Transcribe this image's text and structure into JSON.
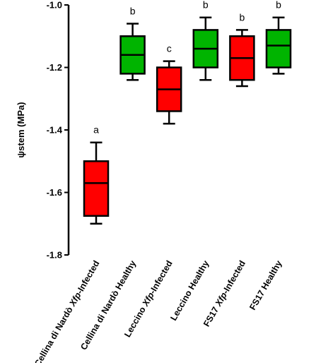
{
  "chart_data": {
    "type": "box",
    "ylabel": "ψstem (MPa)",
    "ylim": [
      -1.8,
      -1.0
    ],
    "yticks": [
      -1.0,
      -1.2,
      -1.4,
      -1.6,
      -1.8
    ],
    "ytick_labels": [
      "-1.0",
      "-1.2",
      "-1.4",
      "-1.6",
      "-1.8"
    ],
    "grid": false,
    "categories": [
      {
        "pre": "Cellina di Nardò ",
        "italic": "Xfp",
        "post": "-Infected"
      },
      {
        "pre": "Cellina di Nardò Healthy",
        "italic": "",
        "post": ""
      },
      {
        "pre": "Leccino ",
        "italic": "Xfp",
        "post": "-Infected"
      },
      {
        "pre": "Leccino Healthy",
        "italic": "",
        "post": ""
      },
      {
        "pre": "FS17 ",
        "italic": "Xfp",
        "post": "-Infected"
      },
      {
        "pre": "FS17 Healthy",
        "italic": "",
        "post": ""
      }
    ],
    "boxes": [
      {
        "min": -1.7,
        "q1": -1.675,
        "median": -1.57,
        "q3": -1.5,
        "max": -1.44,
        "color": "#ff0000",
        "letter": "a"
      },
      {
        "min": -1.24,
        "q1": -1.22,
        "median": -1.16,
        "q3": -1.1,
        "max": -1.06,
        "color": "#00b400",
        "letter": "b"
      },
      {
        "min": -1.38,
        "q1": -1.34,
        "median": -1.27,
        "q3": -1.2,
        "max": -1.18,
        "color": "#ff0000",
        "letter": "c"
      },
      {
        "min": -1.24,
        "q1": -1.2,
        "median": -1.14,
        "q3": -1.08,
        "max": -1.04,
        "color": "#00b400",
        "letter": "b"
      },
      {
        "min": -1.26,
        "q1": -1.24,
        "median": -1.17,
        "q3": -1.1,
        "max": -1.08,
        "color": "#ff0000",
        "letter": "b"
      },
      {
        "min": -1.22,
        "q1": -1.2,
        "median": -1.13,
        "q3": -1.08,
        "max": -1.04,
        "color": "#00b400",
        "letter": "b"
      }
    ]
  }
}
